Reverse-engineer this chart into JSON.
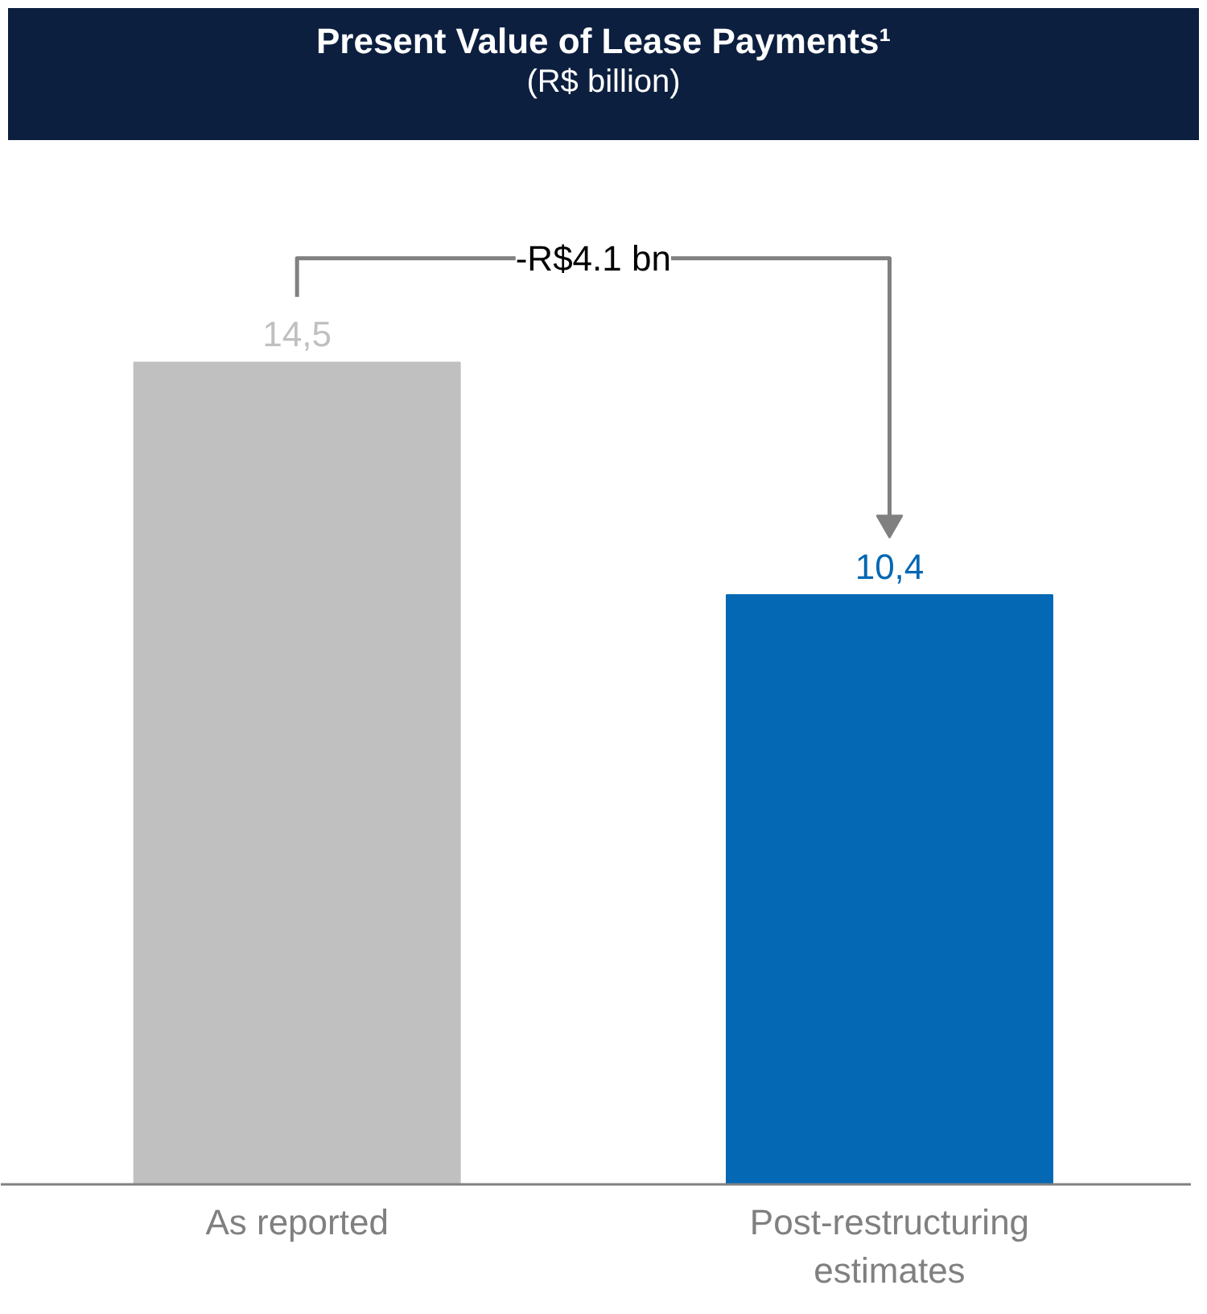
{
  "chart_data": {
    "type": "bar",
    "title": "Present Value of Lease Payments¹",
    "subtitle": "(R$ billion)",
    "categories": [
      "As reported",
      "Post-restructuring estimates"
    ],
    "values": [
      14.5,
      10.4
    ],
    "colors": [
      "#c0c0c0",
      "#0468b4"
    ],
    "value_labels": [
      "14,5",
      "10,4"
    ],
    "annotations": [
      "-R$4.1 bn"
    ],
    "grid": false
  }
}
